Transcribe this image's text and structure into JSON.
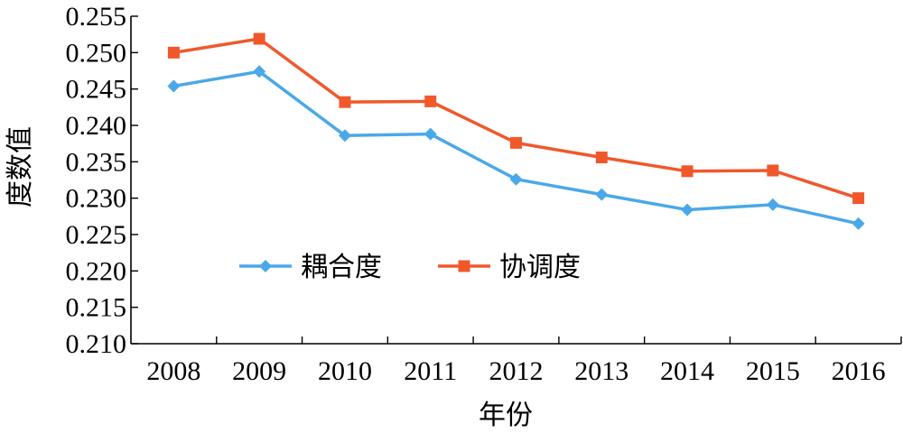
{
  "chart_data": {
    "type": "line",
    "title": "",
    "xlabel": "年份",
    "ylabel": "度数值",
    "categories": [
      "2008",
      "2009",
      "2010",
      "2011",
      "2012",
      "2013",
      "2014",
      "2015",
      "2016"
    ],
    "ylim": [
      0.21,
      0.255
    ],
    "yticks": [
      "0.210",
      "0.215",
      "0.220",
      "0.225",
      "0.230",
      "0.235",
      "0.240",
      "0.245",
      "0.250",
      "0.255"
    ],
    "grid": false,
    "legend_position": "lower-left",
    "series": [
      {
        "name": "耦合度",
        "color": "#4aa8e8",
        "marker": "diamond",
        "values": [
          0.2454,
          0.2474,
          0.2386,
          0.2388,
          0.2326,
          0.2305,
          0.2284,
          0.2291,
          0.2265
        ]
      },
      {
        "name": "协调度",
        "color": "#f0582b",
        "marker": "square",
        "values": [
          0.25,
          0.2519,
          0.2432,
          0.2433,
          0.2376,
          0.2356,
          0.2337,
          0.2338,
          0.23
        ]
      }
    ]
  }
}
